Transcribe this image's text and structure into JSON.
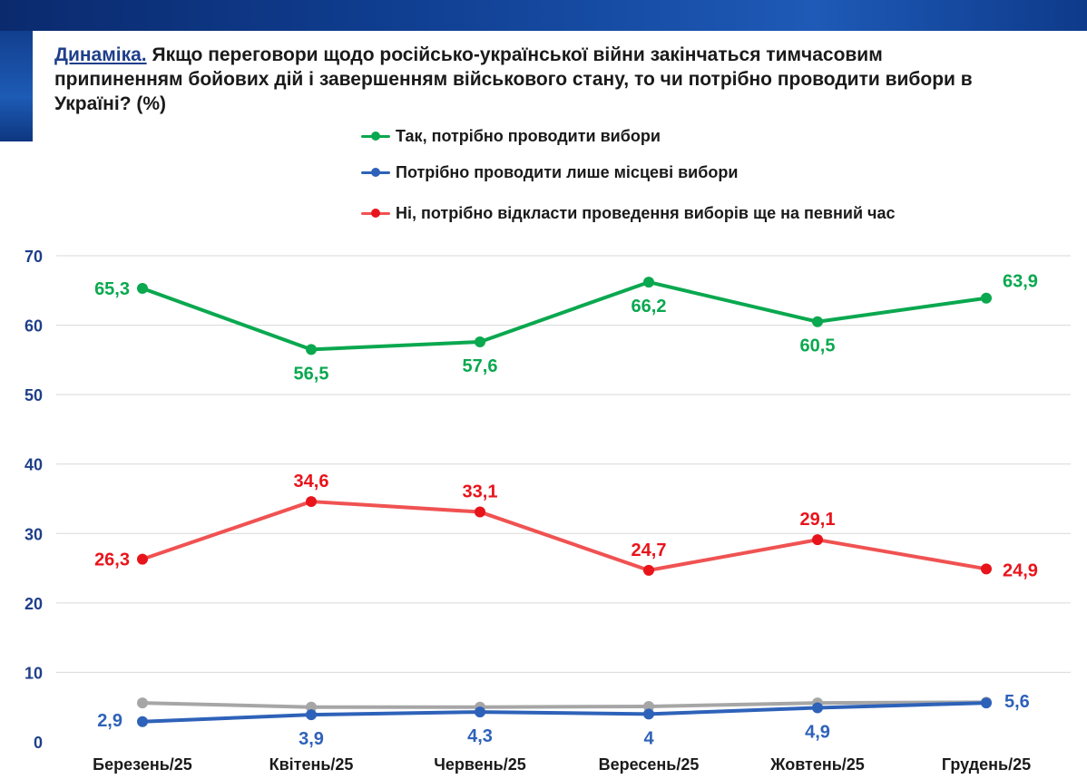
{
  "title": {
    "lead": "Динаміка.",
    "text": "Якщо переговори щодо російсько-української війни закінчаться тимчасовим припиненням бойових дій і завершенням військового стану, то чи потрібно проводити вибори в Україні? (%)"
  },
  "colors": {
    "green": "#0aa84f",
    "blue": "#2e62b9",
    "red": "#f05252",
    "red_dot": "#e8141b",
    "gray": "#a6a6a6",
    "axis_blue": "#1f3f8a",
    "grid": "#d9d9d9"
  },
  "legend": [
    {
      "label": "Так, потрібно проводити вибори",
      "color": "#0aa84f"
    },
    {
      "label": "Потрібно проводити лише місцеві вибори",
      "color": "#2e62b9"
    },
    {
      "label": "Ні, потрібно відкласти проведення виборів ще на певний час",
      "color": "#f05252"
    }
  ],
  "chart_data": {
    "type": "line",
    "categories": [
      "Березень/25",
      "Квітень/25",
      "Червень/25",
      "Вересень/25",
      "Жовтень/25",
      "Грудень/25"
    ],
    "ylim": [
      0,
      70
    ],
    "yticks": [
      0,
      10,
      20,
      30,
      40,
      50,
      60,
      70
    ],
    "grid": true,
    "legend_position": "top-right",
    "series": [
      {
        "name": "Так, потрібно проводити вибори",
        "values": [
          65.3,
          56.5,
          57.6,
          66.2,
          60.5,
          63.9
        ],
        "labels": [
          "65,3",
          "56,5",
          "57,6",
          "66,2",
          "60,5",
          "63,9"
        ],
        "color": "#0aa84f",
        "dot": "#0aa84f",
        "label_color": "#0aa84f"
      },
      {
        "name": "Ні, потрібно відкласти проведення виборів ще на певний час",
        "values": [
          26.3,
          34.6,
          33.1,
          24.7,
          29.1,
          24.9
        ],
        "labels": [
          "26,3",
          "34,6",
          "33,1",
          "24,7",
          "29,1",
          "24,9"
        ],
        "color": "#f05252",
        "dot": "#e8141b",
        "label_color": "#e8141b"
      },
      {
        "name": "Потрібно проводити лише місцеві вибори",
        "values": [
          2.9,
          3.9,
          4.3,
          4.0,
          4.9,
          5.6
        ],
        "labels": [
          "2,9",
          "3,9",
          "4,3",
          "4",
          "4,9",
          "5,6"
        ],
        "color": "#2e62b9",
        "dot": "#2e62b9",
        "label_color": "#2e62b9"
      },
      {
        "name": "",
        "values": [
          5.6,
          5.0,
          5.0,
          5.1,
          5.6,
          5.7
        ],
        "labels": [],
        "color": "#a6a6a6",
        "dot": "#a6a6a6",
        "label_color": "#a6a6a6"
      }
    ]
  }
}
